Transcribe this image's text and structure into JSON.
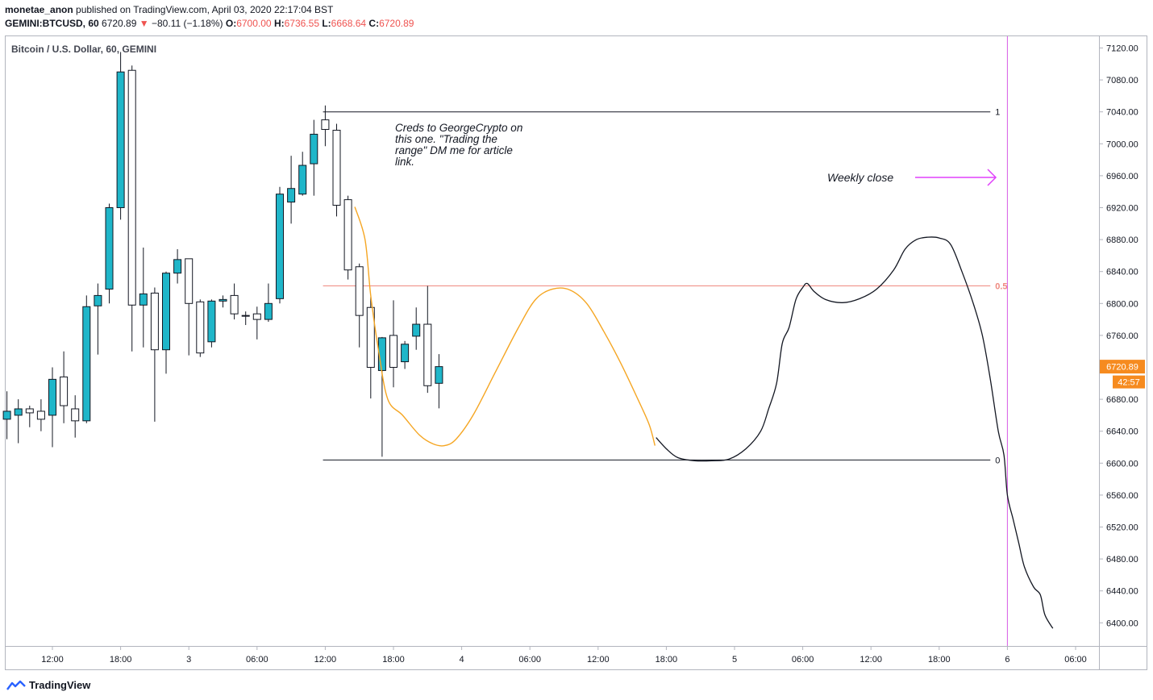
{
  "header": {
    "author": "monetae_anon",
    "published_text": "published on TradingView.com, April 03, 2020 22:17:04 BST",
    "symbol": "GEMINI:BTCUSD, 60",
    "last": "6720.89",
    "change": "−80.11 (−1.18%)",
    "o_label": "O:",
    "o": "6700.00",
    "h_label": "H:",
    "h": "6736.55",
    "l_label": "L:",
    "l": "6668.64",
    "c_label": "C:",
    "c": "6720.89"
  },
  "footer": {
    "brand": "TradingView"
  },
  "colors": {
    "up": "#1fb6c9",
    "down": "#ffffff",
    "wick": "#131722",
    "fib_mid": "#ef8a80",
    "orange": "#f5a623",
    "magenta": "#e040fb",
    "price_tag": "#f68b1f"
  },
  "chart_data": {
    "type": "candlestick",
    "title": "Bitcoin / U.S. Dollar, 60, GEMINI",
    "ylim": [
      6360,
      7140
    ],
    "y_ticks": [
      7120,
      7080,
      7040,
      7000,
      6960,
      6920,
      6880,
      6840,
      6800,
      6760,
      6720,
      6680,
      6640,
      6600,
      6560,
      6520,
      6480,
      6440,
      6400
    ],
    "y_tick_labels": [
      "7120.00",
      "7080.00",
      "7040.00",
      "7000.00",
      "6960.00",
      "6920.00",
      "6880.00",
      "6840.00",
      "6800.00",
      "6760.00",
      "6720.00",
      "6680.00",
      "6640.00",
      "6600.00",
      "6560.00",
      "6520.00",
      "6480.00",
      "6440.00",
      "6400.00"
    ],
    "x_range_hours": [
      -8.7,
      89
    ],
    "x_ticks": [
      {
        "h": 0,
        "label": "12:00"
      },
      {
        "h": 6,
        "label": "18:00"
      },
      {
        "h": 12,
        "label": "3"
      },
      {
        "h": 18,
        "label": "06:00"
      },
      {
        "h": 24,
        "label": "12:00"
      },
      {
        "h": 30,
        "label": "18:00"
      },
      {
        "h": 36,
        "label": "4"
      },
      {
        "h": 42,
        "label": "06:00"
      },
      {
        "h": 48,
        "label": "12:00"
      },
      {
        "h": 54,
        "label": "18:00"
      },
      {
        "h": 60,
        "label": "5"
      },
      {
        "h": 66,
        "label": "06:00"
      },
      {
        "h": 72,
        "label": "12:00"
      },
      {
        "h": 78,
        "label": "18:00"
      },
      {
        "h": 84,
        "label": "6"
      },
      {
        "h": 90,
        "label": "06:00"
      }
    ],
    "candles": [
      {
        "h": -4,
        "o": 6655,
        "c": 6665,
        "hi": 6690,
        "lo": 6630
      },
      {
        "h": -3,
        "o": 6660,
        "c": 6668,
        "hi": 6680,
        "lo": 6625
      },
      {
        "h": -2,
        "o": 6668,
        "c": 6663,
        "hi": 6672,
        "lo": 6645
      },
      {
        "h": -1,
        "o": 6665,
        "c": 6655,
        "hi": 6680,
        "lo": 6640
      },
      {
        "h": 0,
        "o": 6660,
        "c": 6705,
        "hi": 6720,
        "lo": 6620
      },
      {
        "h": 1,
        "o": 6708,
        "c": 6672,
        "hi": 6740,
        "lo": 6650
      },
      {
        "h": 2,
        "o": 6668,
        "c": 6653,
        "hi": 6685,
        "lo": 6632
      },
      {
        "h": 3,
        "o": 6653,
        "c": 6796,
        "hi": 6810,
        "lo": 6650
      },
      {
        "h": 4,
        "o": 6797,
        "c": 6810,
        "hi": 6825,
        "lo": 6736
      },
      {
        "h": 5,
        "o": 6818,
        "c": 6920,
        "hi": 6925,
        "lo": 6800
      },
      {
        "h": 6,
        "o": 6920,
        "c": 7090,
        "hi": 7115,
        "lo": 6905
      },
      {
        "h": 7,
        "o": 7092,
        "c": 6798,
        "hi": 7098,
        "lo": 6740
      },
      {
        "h": 8,
        "o": 6798,
        "c": 6812,
        "hi": 6870,
        "lo": 6745
      },
      {
        "h": 9,
        "o": 6813,
        "c": 6742,
        "hi": 6820,
        "lo": 6652
      },
      {
        "h": 10,
        "o": 6742,
        "c": 6838,
        "hi": 6840,
        "lo": 6712
      },
      {
        "h": 11,
        "o": 6838,
        "c": 6855,
        "hi": 6868,
        "lo": 6825
      },
      {
        "h": 12,
        "o": 6856,
        "c": 6800,
        "hi": 6856,
        "lo": 6735
      },
      {
        "h": 13,
        "o": 6802,
        "c": 6738,
        "hi": 6805,
        "lo": 6733
      },
      {
        "h": 14,
        "o": 6752,
        "c": 6803,
        "hi": 6805,
        "lo": 6745
      },
      {
        "h": 15,
        "o": 6803,
        "c": 6805,
        "hi": 6810,
        "lo": 6795
      },
      {
        "h": 16,
        "o": 6810,
        "c": 6787,
        "hi": 6825,
        "lo": 6780
      },
      {
        "h": 17,
        "o": 6785,
        "c": 6784,
        "hi": 6790,
        "lo": 6773
      },
      {
        "h": 18,
        "o": 6787,
        "c": 6780,
        "hi": 6796,
        "lo": 6755
      },
      {
        "h": 19,
        "o": 6780,
        "c": 6800,
        "hi": 6825,
        "lo": 6777
      },
      {
        "h": 20,
        "o": 6806,
        "c": 6937,
        "hi": 6946,
        "lo": 6800
      },
      {
        "h": 21,
        "o": 6927,
        "c": 6944,
        "hi": 6985,
        "lo": 6900
      },
      {
        "h": 22,
        "o": 6937,
        "c": 6973,
        "hi": 6990,
        "lo": 6935
      },
      {
        "h": 23,
        "o": 6975,
        "c": 7012,
        "hi": 7030,
        "lo": 6935
      },
      {
        "h": 24,
        "o": 7030,
        "c": 7018,
        "hi": 7048,
        "lo": 6997
      },
      {
        "h": 25,
        "o": 7017,
        "c": 6923,
        "hi": 7025,
        "lo": 6909
      },
      {
        "h": 26,
        "o": 6930,
        "c": 6842,
        "hi": 6935,
        "lo": 6830
      },
      {
        "h": 27,
        "o": 6846,
        "c": 6785,
        "hi": 6850,
        "lo": 6745
      },
      {
        "h": 28,
        "o": 6795,
        "c": 6720,
        "hi": 6808,
        "lo": 6681
      },
      {
        "h": 29,
        "o": 6716,
        "c": 6757,
        "hi": 6758,
        "lo": 6608
      },
      {
        "h": 30,
        "o": 6760,
        "c": 6720,
        "hi": 6804,
        "lo": 6695
      },
      {
        "h": 31,
        "o": 6727,
        "c": 6749,
        "hi": 6753,
        "lo": 6718
      },
      {
        "h": 32,
        "o": 6759,
        "c": 6774,
        "hi": 6795,
        "lo": 6742
      },
      {
        "h": 33,
        "o": 6774,
        "c": 6697,
        "hi": 6822,
        "lo": 6688
      },
      {
        "h": 34,
        "o": 6700,
        "c": 6720.89,
        "hi": 6736.55,
        "lo": 6668.64
      }
    ],
    "fib": {
      "start_h": 23.8,
      "end_h": 82.5,
      "levels": [
        {
          "label": "1",
          "price": 7040
        },
        {
          "label": "0.5",
          "price": 6822
        },
        {
          "label": "0",
          "price": 6604
        }
      ]
    },
    "orange_path": [
      [
        26.6,
        6921
      ],
      [
        27.5,
        6880
      ],
      [
        28,
        6810
      ],
      [
        28.7,
        6740
      ],
      [
        29.5,
        6680
      ],
      [
        30.8,
        6660
      ],
      [
        32.3,
        6635
      ],
      [
        33.5,
        6624
      ],
      [
        34.5,
        6622
      ],
      [
        35.5,
        6630
      ],
      [
        37,
        6660
      ],
      [
        39,
        6715
      ],
      [
        41,
        6770
      ],
      [
        42.5,
        6805
      ],
      [
        44,
        6818
      ],
      [
        45.5,
        6817
      ],
      [
        47,
        6800
      ],
      [
        48.5,
        6765
      ],
      [
        50,
        6725
      ],
      [
        51.5,
        6680
      ],
      [
        52.5,
        6648
      ],
      [
        53,
        6622
      ]
    ],
    "black_path": [
      [
        53.1,
        6632
      ],
      [
        54,
        6618
      ],
      [
        55,
        6607
      ],
      [
        56.5,
        6603
      ],
      [
        58,
        6603
      ],
      [
        59.5,
        6605
      ],
      [
        61,
        6618
      ],
      [
        62.3,
        6640
      ],
      [
        63,
        6668
      ],
      [
        63.7,
        6700
      ],
      [
        64.2,
        6750
      ],
      [
        64.8,
        6770
      ],
      [
        65.4,
        6805
      ],
      [
        66,
        6820
      ],
      [
        66.4,
        6825
      ],
      [
        67,
        6815
      ],
      [
        68,
        6805
      ],
      [
        69.5,
        6801
      ],
      [
        71,
        6806
      ],
      [
        72.5,
        6818
      ],
      [
        74,
        6842
      ],
      [
        75,
        6868
      ],
      [
        76,
        6880
      ],
      [
        77,
        6883
      ],
      [
        78,
        6882
      ],
      [
        79,
        6874
      ],
      [
        80,
        6840
      ],
      [
        81,
        6800
      ],
      [
        81.8,
        6760
      ],
      [
        82.5,
        6705
      ],
      [
        83.2,
        6640
      ],
      [
        83.7,
        6610
      ],
      [
        84,
        6560
      ],
      [
        84.5,
        6530
      ],
      [
        85,
        6500
      ],
      [
        85.5,
        6470
      ],
      [
        86.3,
        6445
      ],
      [
        86.9,
        6435
      ],
      [
        87.3,
        6410
      ],
      [
        88,
        6393
      ]
    ],
    "annotations": [
      {
        "id": "creds",
        "lines": [
          "Creds to GeorgeCrypto on",
          "this one. \"Trading the",
          "range\" DM me for article",
          "link."
        ]
      },
      {
        "id": "weekly",
        "text": "Weekly close"
      }
    ],
    "vertical_line_h": 84,
    "price_tag": "6720.89",
    "countdown": "42:57"
  }
}
